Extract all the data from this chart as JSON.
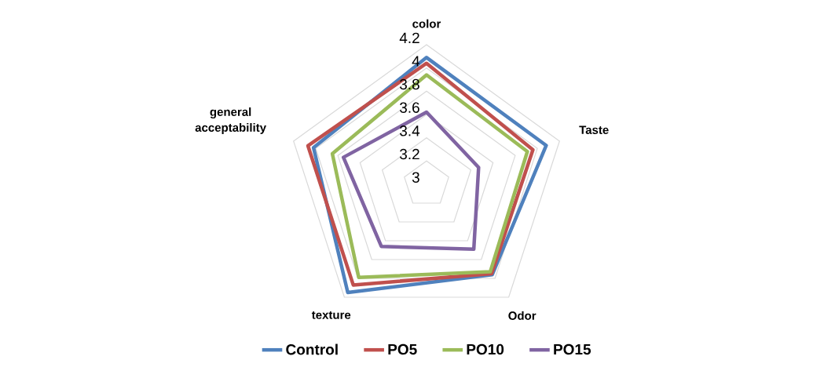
{
  "chart_data": {
    "type": "radar",
    "categories": [
      "color",
      "Taste",
      "Odor",
      "texture",
      "general acceptability"
    ],
    "series": [
      {
        "name": "Control",
        "color": "#4f81bd",
        "values": [
          4.09,
          4.08,
          3.96,
          4.15,
          4.02
        ]
      },
      {
        "name": "PO5",
        "color": "#c0504d",
        "values": [
          4.04,
          3.96,
          3.95,
          4.07,
          4.07
        ]
      },
      {
        "name": "PO10",
        "color": "#9bbb59",
        "values": [
          3.94,
          3.91,
          3.93,
          3.99,
          3.85
        ]
      },
      {
        "name": "PO15",
        "color": "#8064a2",
        "values": [
          3.62,
          3.47,
          3.69,
          3.66,
          3.75
        ]
      }
    ],
    "ylim": [
      3,
      4.2
    ],
    "yticks": [
      3,
      3.2,
      3.4,
      3.6,
      3.8,
      4,
      4.2
    ],
    "grid": true,
    "legend": "bottom",
    "marker": "none",
    "line_style": "solid"
  }
}
